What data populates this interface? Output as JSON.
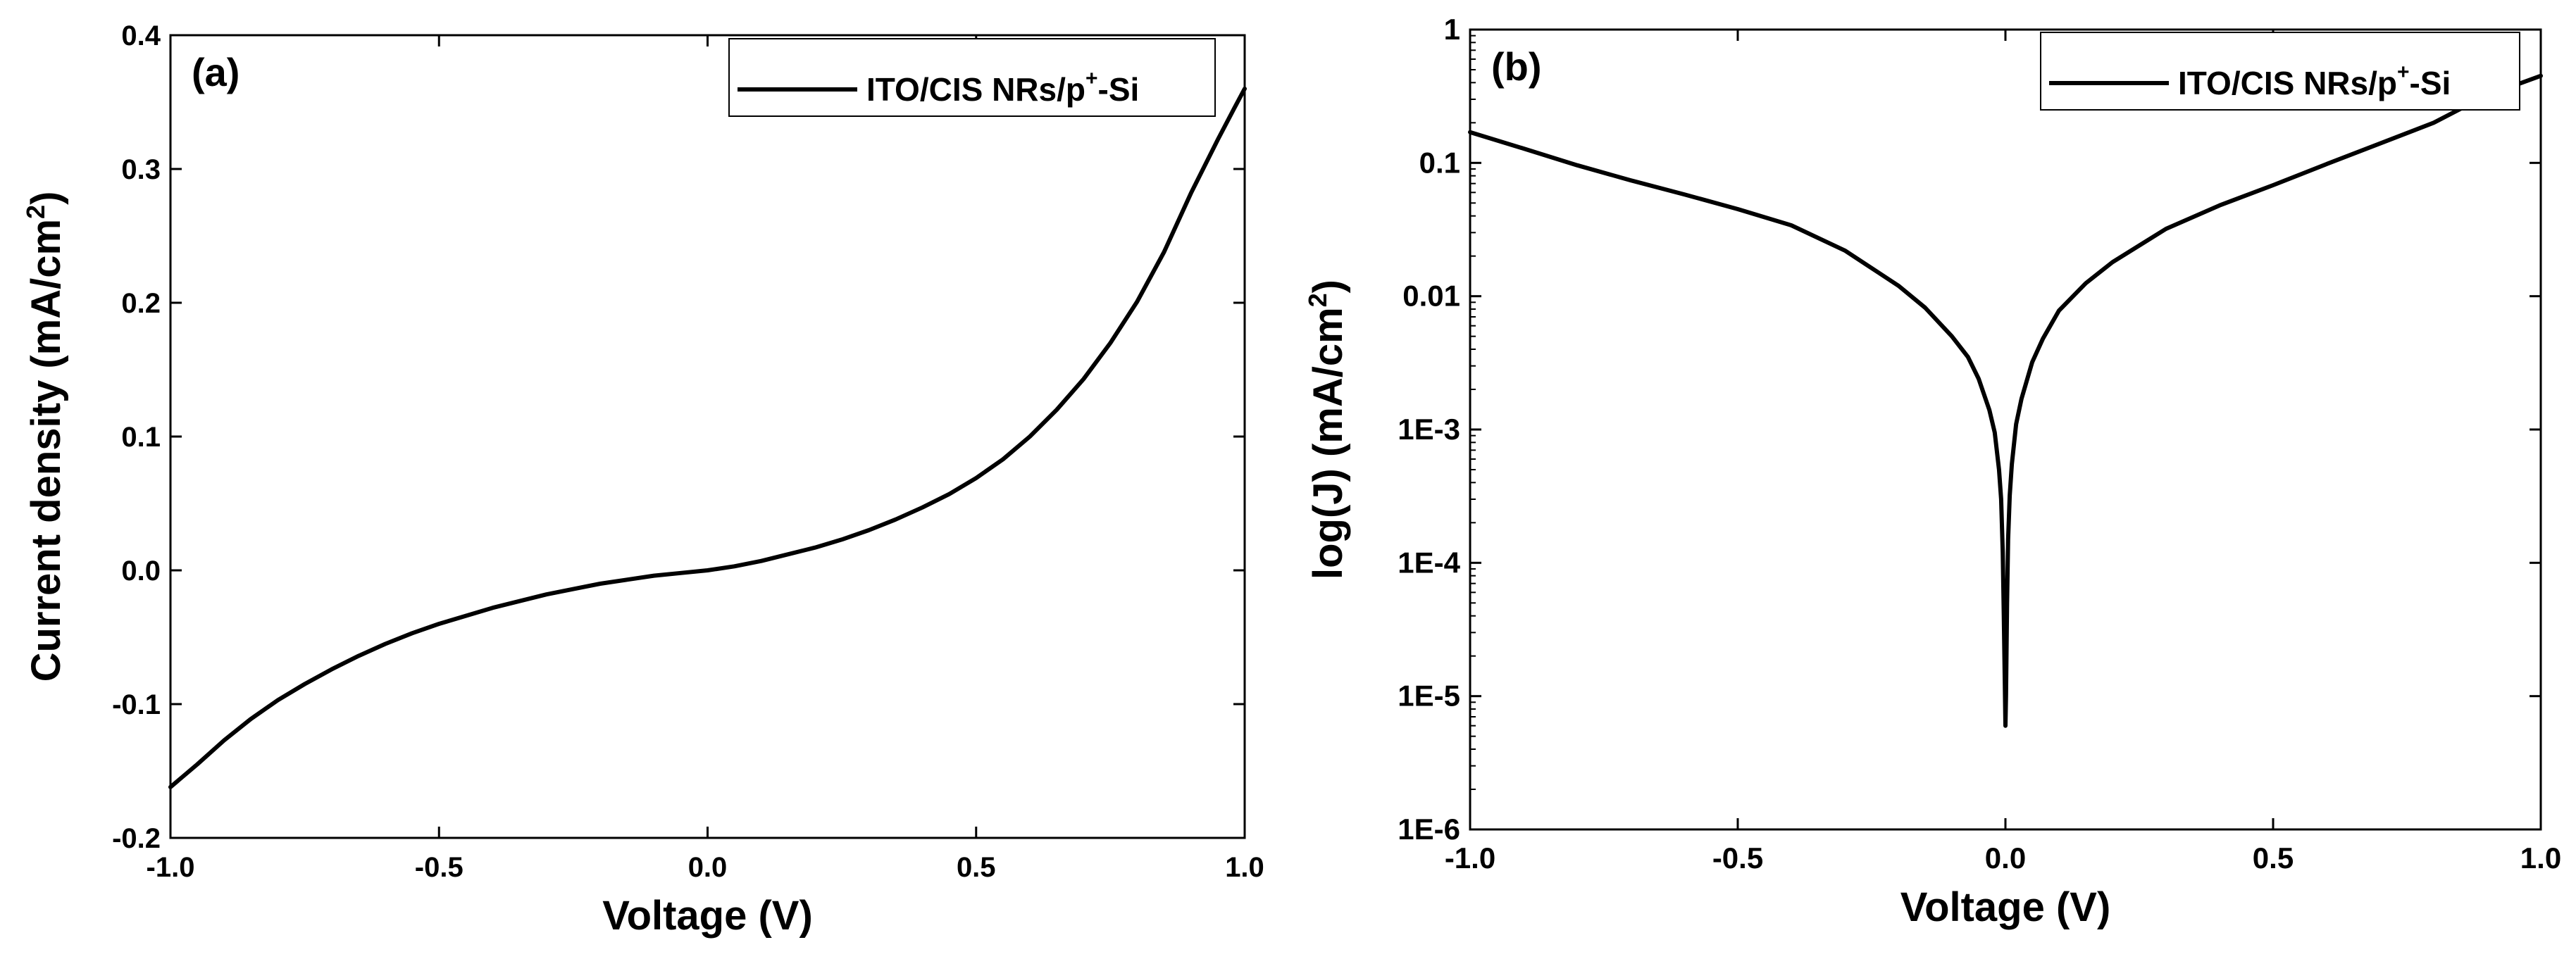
{
  "chart_data": [
    {
      "panel_label": "(a)",
      "type": "line",
      "xlabel": "Voltage (V)",
      "ylabel_main": "Current density (mA/cm",
      "ylabel_sup": "2",
      "ylabel_end": ")",
      "xlim": [
        -1.0,
        1.0
      ],
      "ylim": [
        -0.2,
        0.4
      ],
      "xticks": [
        -1.0,
        -0.5,
        0.0,
        0.5,
        1.0
      ],
      "xtick_labels": [
        "-1.0",
        "-0.5",
        "0.0",
        "0.5",
        "1.0"
      ],
      "yticks": [
        -0.2,
        -0.1,
        0.0,
        0.1,
        0.2,
        0.3,
        0.4
      ],
      "ytick_labels": [
        "-0.2",
        "-0.1",
        "0.0",
        "0.1",
        "0.2",
        "0.3",
        "0.4"
      ],
      "legend": {
        "location": "top-right",
        "pre": "ITO/CIS NRs/p",
        "sup": "+",
        "post": "-Si"
      },
      "series": [
        {
          "name": "ITO/CIS NRs/p+-Si",
          "color": "#000000",
          "x": [
            -1.0,
            -0.95,
            -0.9,
            -0.85,
            -0.8,
            -0.75,
            -0.7,
            -0.65,
            -0.6,
            -0.55,
            -0.5,
            -0.45,
            -0.4,
            -0.35,
            -0.3,
            -0.25,
            -0.2,
            -0.15,
            -0.1,
            -0.05,
            0.0,
            0.05,
            0.1,
            0.15,
            0.2,
            0.25,
            0.3,
            0.35,
            0.4,
            0.45,
            0.5,
            0.55,
            0.6,
            0.65,
            0.7,
            0.75,
            0.8,
            0.85,
            0.9,
            0.95,
            0.98,
            1.0
          ],
          "y": [
            -0.162,
            -0.145,
            -0.127,
            -0.111,
            -0.097,
            -0.085,
            -0.074,
            -0.064,
            -0.055,
            -0.047,
            -0.04,
            -0.034,
            -0.028,
            -0.023,
            -0.018,
            -0.014,
            -0.01,
            -0.007,
            -0.004,
            -0.002,
            0.0,
            0.003,
            0.007,
            0.012,
            0.017,
            0.023,
            0.03,
            0.038,
            0.047,
            0.057,
            0.069,
            0.083,
            0.1,
            0.12,
            0.143,
            0.17,
            0.201,
            0.238,
            0.282,
            0.322,
            0.345,
            0.36
          ]
        }
      ]
    },
    {
      "panel_label": "(b)",
      "type": "line",
      "yscale": "log",
      "xlabel": "Voltage (V)",
      "ylabel_main": "log(J) (mA/cm",
      "ylabel_sup": "2",
      "ylabel_end": ")",
      "xlim": [
        -1.0,
        1.0
      ],
      "ylim": [
        1e-06,
        1
      ],
      "xticks": [
        -1.0,
        -0.5,
        0.0,
        0.5,
        1.0
      ],
      "xtick_labels": [
        "-1.0",
        "-0.5",
        "0.0",
        "0.5",
        "1.0"
      ],
      "yticks": [
        1e-06,
        1e-05,
        0.0001,
        0.001,
        0.01,
        0.1,
        1
      ],
      "ytick_labels": [
        "1E-6",
        "1E-5",
        "1E-4",
        "1E-3",
        "0.01",
        "0.1",
        "1"
      ],
      "legend": {
        "location": "top-right",
        "pre": "ITO/CIS NRs/p",
        "sup": "+",
        "post": "-Si"
      },
      "series": [
        {
          "name": "ITO/CIS NRs/p+-Si",
          "color": "#000000",
          "x": [
            -1.0,
            -0.9,
            -0.8,
            -0.7,
            -0.6,
            -0.5,
            -0.4,
            -0.3,
            -0.2,
            -0.15,
            -0.1,
            -0.07,
            -0.05,
            -0.03,
            -0.02,
            -0.012,
            -0.008,
            -0.005,
            -0.003,
            -0.001,
            0.0,
            0.001,
            0.003,
            0.005,
            0.008,
            0.012,
            0.02,
            0.03,
            0.05,
            0.07,
            0.1,
            0.15,
            0.2,
            0.3,
            0.4,
            0.5,
            0.6,
            0.7,
            0.8,
            0.87,
            0.9,
            0.95,
            1.0
          ],
          "y": [
            0.17,
            0.128,
            0.096,
            0.074,
            0.058,
            0.045,
            0.034,
            0.022,
            0.012,
            0.0082,
            0.005,
            0.0035,
            0.0024,
            0.0014,
            0.00095,
            0.0005,
            0.0003,
            0.00012,
            4e-05,
            1.2e-05,
            6e-06,
            1e-05,
            5e-05,
            0.00015,
            0.00032,
            0.00055,
            0.0011,
            0.0017,
            0.0032,
            0.0048,
            0.0078,
            0.0125,
            0.018,
            0.032,
            0.048,
            0.068,
            0.098,
            0.14,
            0.2,
            0.28,
            0.31,
            0.38,
            0.45
          ]
        }
      ]
    }
  ]
}
